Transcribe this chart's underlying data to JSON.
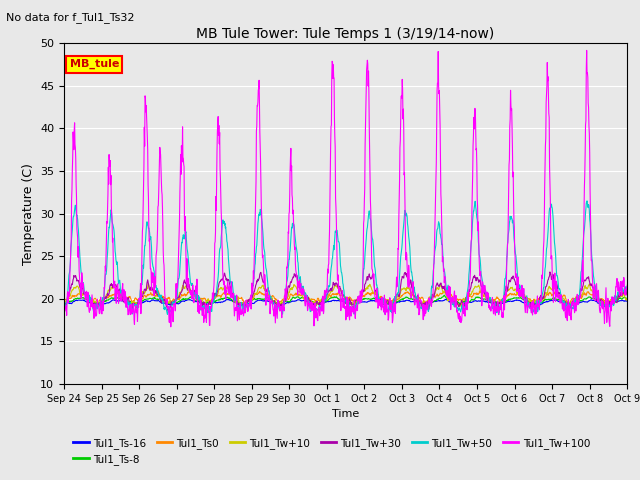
{
  "title": "MB Tule Tower: Tule Temps 1 (3/19/14-now)",
  "no_data_text": "No data for f_Tul1_Ts32",
  "ylabel": "Temperature (C)",
  "xlabel": "Time",
  "ylim": [
    10,
    50
  ],
  "yticks": [
    10,
    15,
    20,
    25,
    30,
    35,
    40,
    45,
    50
  ],
  "n_days": 15.5,
  "x_tick_labels": [
    "Sep 24",
    "Sep 25",
    "Sep 26",
    "Sep 27",
    "Sep 28",
    "Sep 29",
    "Sep 30",
    "Oct 1",
    "Oct 2",
    "Oct 3",
    "Oct 4",
    "Oct 5",
    "Oct 6",
    "Oct 7",
    "Oct 8",
    "Oct 9"
  ],
  "legend_box_text": "MB_tule",
  "legend_box_color": "#ffff00",
  "legend_box_border": "#ff0000",
  "series": [
    {
      "label": "Tul1_Ts-16",
      "color": "#0000ff",
      "lw": 0.8
    },
    {
      "label": "Tul1_Ts-8",
      "color": "#00cc00",
      "lw": 0.8
    },
    {
      "label": "Tul1_Ts0",
      "color": "#ff8800",
      "lw": 0.8
    },
    {
      "label": "Tul1_Tw+10",
      "color": "#cccc00",
      "lw": 0.8
    },
    {
      "label": "Tul1_Tw+30",
      "color": "#aa00aa",
      "lw": 0.8
    },
    {
      "label": "Tul1_Tw+50",
      "color": "#00cccc",
      "lw": 0.8
    },
    {
      "label": "Tul1_Tw+100",
      "color": "#ff00ff",
      "lw": 0.8
    }
  ],
  "bg_color": "#e8e8e8",
  "grid_color": "#ffffff"
}
